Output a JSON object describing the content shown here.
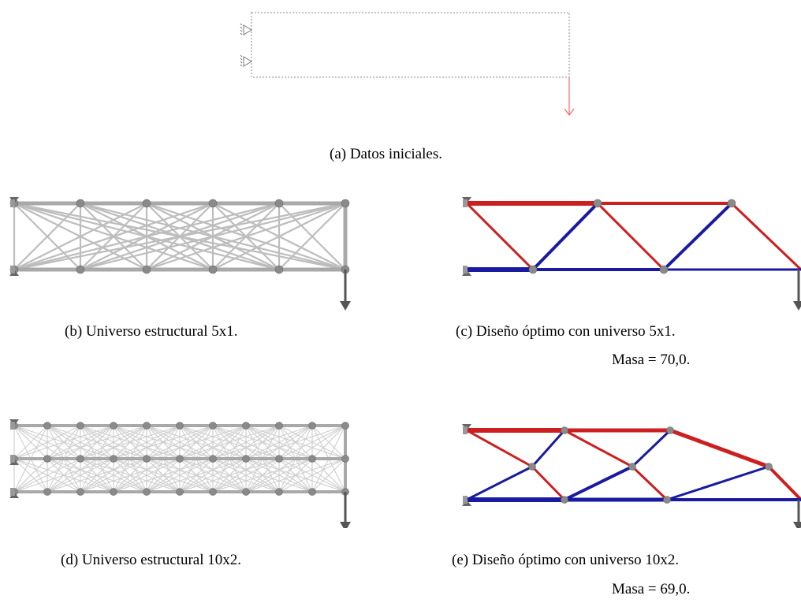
{
  "captions": {
    "a": "(a) Datos iniciales.",
    "b": "(b) Universo estructural 5x1.",
    "c": "(c) Diseño óptimo con universo 5x1.",
    "c_mass": "Masa = 70,0.",
    "d": "(d) Universo estructural 10x2.",
    "e": "(e) Diseño óptimo con universo 10x2.",
    "e_mass": "Masa = 69,0."
  },
  "colors": {
    "tension": "#cc1f1f",
    "compression": "#1a1aa0",
    "universe_bar": "#bdbdbd",
    "node": "#8a8a8a",
    "load_arrow": "#555555",
    "initial_load": "#f06a6a",
    "domain_border": "#888888"
  },
  "icons": {
    "support": "pin-support-icon",
    "load": "down-arrow-icon",
    "node": "node-ball-icon"
  }
}
